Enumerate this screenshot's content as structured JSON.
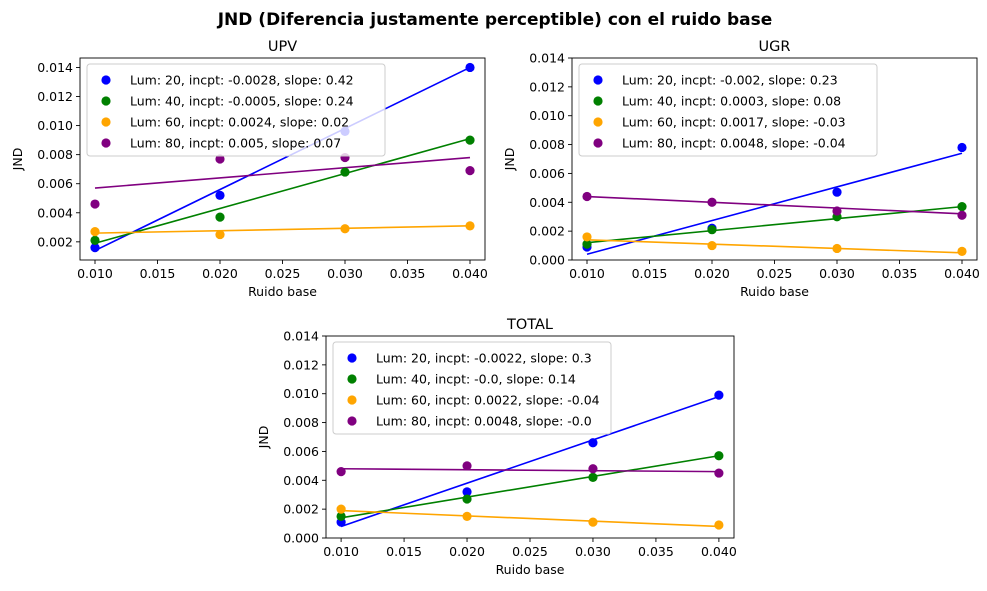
{
  "figure": {
    "suptitle": "JND (Diferencia justamente perceptible) con el ruido base"
  },
  "chart_data": [
    {
      "type": "scatter",
      "title": "UPV",
      "xlabel": "Ruido base",
      "ylabel": "JND",
      "xlim": [
        0.0088,
        0.0412
      ],
      "ylim": [
        0.00075,
        0.01465
      ],
      "x_ticks": [
        0.01,
        0.015,
        0.02,
        0.025,
        0.03,
        0.035,
        0.04
      ],
      "x_tick_labels": [
        "0.010",
        "0.015",
        "0.020",
        "0.025",
        "0.030",
        "0.035",
        "0.040"
      ],
      "y_ticks": [
        0.002,
        0.004,
        0.006,
        0.008,
        0.01,
        0.012,
        0.014
      ],
      "y_tick_labels": [
        "0.002",
        "0.004",
        "0.006",
        "0.008",
        "0.010",
        "0.012",
        "0.014"
      ],
      "legend_position": "top-left",
      "x": [
        0.01,
        0.02,
        0.03,
        0.04
      ],
      "series": [
        {
          "name": "Lum: 20, incpt: -0.0028, slope: 0.42",
          "color": "#0000ff",
          "values": [
            0.0016,
            0.0052,
            0.0096,
            0.014
          ],
          "fit": [
            0.0014,
            0.014
          ]
        },
        {
          "name": "Lum: 40, incpt: -0.0005, slope: 0.24",
          "color": "#008000",
          "values": [
            0.0021,
            0.0037,
            0.0068,
            0.009
          ],
          "fit": [
            0.0019,
            0.0091
          ]
        },
        {
          "name": "Lum: 60, incpt: 0.0024, slope: 0.02",
          "color": "#ffa500",
          "values": [
            0.0027,
            0.0025,
            0.0029,
            0.0031
          ],
          "fit": [
            0.0026,
            0.0031
          ]
        },
        {
          "name": "Lum: 80, incpt: 0.005, slope: 0.07",
          "color": "#800080",
          "values": [
            0.0046,
            0.0077,
            0.0078,
            0.0069
          ],
          "fit": [
            0.0057,
            0.0078
          ]
        }
      ]
    },
    {
      "type": "scatter",
      "title": "UGR",
      "xlabel": "Ruido base",
      "ylabel": "JND",
      "xlim": [
        0.0088,
        0.0412
      ],
      "ylim": [
        0,
        0.014
      ],
      "x_ticks": [
        0.01,
        0.015,
        0.02,
        0.025,
        0.03,
        0.035,
        0.04
      ],
      "x_tick_labels": [
        "0.010",
        "0.015",
        "0.020",
        "0.025",
        "0.030",
        "0.035",
        "0.040"
      ],
      "y_ticks": [
        0,
        0.002,
        0.004,
        0.006,
        0.008,
        0.01,
        0.012,
        0.014
      ],
      "y_tick_labels": [
        "0.000",
        "0.002",
        "0.004",
        "0.006",
        "0.008",
        "0.010",
        "0.012",
        "0.014"
      ],
      "legend_position": "top-left",
      "x": [
        0.01,
        0.02,
        0.03,
        0.04
      ],
      "series": [
        {
          "name": "Lum: 20, incpt: -0.002, slope: 0.23",
          "color": "#0000ff",
          "values": [
            0.0009,
            0.0022,
            0.0047,
            0.0078
          ],
          "fit": [
            0.0004,
            0.0074
          ]
        },
        {
          "name": "Lum: 40, incpt: 0.0003, slope: 0.08",
          "color": "#008000",
          "values": [
            0.0011,
            0.0021,
            0.003,
            0.0037
          ],
          "fit": [
            0.0012,
            0.0037
          ]
        },
        {
          "name": "Lum: 60, incpt: 0.0017, slope: -0.03",
          "color": "#ffa500",
          "values": [
            0.0016,
            0.001,
            0.0008,
            0.0006
          ],
          "fit": [
            0.0014,
            0.0005
          ]
        },
        {
          "name": "Lum: 80, incpt: 0.0048, slope: -0.04",
          "color": "#800080",
          "values": [
            0.0044,
            0.004,
            0.0034,
            0.0031
          ],
          "fit": [
            0.0044,
            0.0032
          ]
        }
      ]
    },
    {
      "type": "scatter",
      "title": "TOTAL",
      "xlabel": "Ruido base",
      "ylabel": "JND",
      "xlim": [
        0.0088,
        0.0412
      ],
      "ylim": [
        0,
        0.014
      ],
      "x_ticks": [
        0.01,
        0.015,
        0.02,
        0.025,
        0.03,
        0.035,
        0.04
      ],
      "x_tick_labels": [
        "0.010",
        "0.015",
        "0.020",
        "0.025",
        "0.030",
        "0.035",
        "0.040"
      ],
      "y_ticks": [
        0,
        0.002,
        0.004,
        0.006,
        0.008,
        0.01,
        0.012,
        0.014
      ],
      "y_tick_labels": [
        "0.000",
        "0.002",
        "0.004",
        "0.006",
        "0.008",
        "0.010",
        "0.012",
        "0.014"
      ],
      "legend_position": "top-left",
      "x": [
        0.01,
        0.02,
        0.03,
        0.04
      ],
      "series": [
        {
          "name": "Lum: 20, incpt: -0.0022, slope: 0.3",
          "color": "#0000ff",
          "values": [
            0.0011,
            0.0032,
            0.0066,
            0.0099
          ],
          "fit": [
            0.0008,
            0.0098
          ]
        },
        {
          "name": "Lum: 40, incpt: -0.0, slope: 0.14",
          "color": "#008000",
          "values": [
            0.0015,
            0.0027,
            0.0042,
            0.0057
          ],
          "fit": [
            0.0014,
            0.0057
          ]
        },
        {
          "name": "Lum: 60, incpt: 0.0022, slope: -0.04",
          "color": "#ffa500",
          "values": [
            0.002,
            0.0015,
            0.0011,
            0.0009
          ],
          "fit": [
            0.0019,
            0.0008
          ]
        },
        {
          "name": "Lum: 80, incpt: 0.0048, slope: -0.0",
          "color": "#800080",
          "values": [
            0.0046,
            0.005,
            0.0048,
            0.0045
          ],
          "fit": [
            0.0048,
            0.0046
          ]
        }
      ]
    }
  ]
}
